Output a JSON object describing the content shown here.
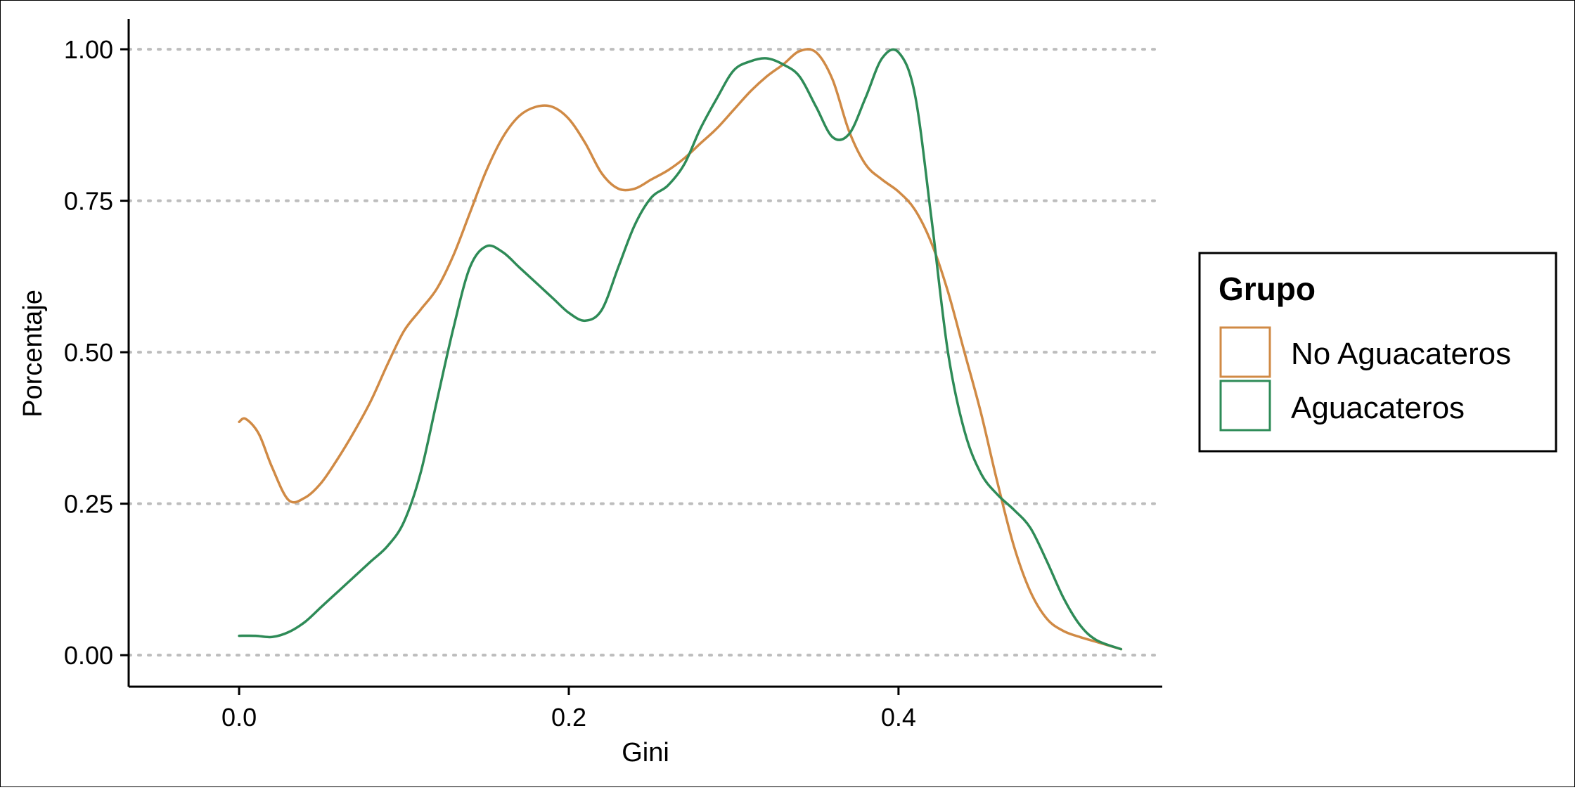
{
  "chart_data": {
    "type": "line",
    "title": "",
    "xlabel": "Gini",
    "ylabel": "Porcentaje",
    "xlim": [
      -0.067,
      0.56
    ],
    "ylim": [
      -0.052,
      1.05
    ],
    "x_ticks": [
      0.0,
      0.2,
      0.4
    ],
    "x_tick_labels": [
      "0.0",
      "0.2",
      "0.4"
    ],
    "y_ticks": [
      0.0,
      0.25,
      0.5,
      0.75,
      1.0
    ],
    "y_tick_labels": [
      "0.00",
      "0.25",
      "0.50",
      "0.75",
      "1.00"
    ],
    "grid": "horizontal dotted at y ticks",
    "legend": {
      "title": "Grupo",
      "position": "right",
      "entries": [
        "No Aguacateros",
        "Aguacateros"
      ]
    },
    "series": [
      {
        "name": "No Aguacateros",
        "color": "#d08a45",
        "points": [
          [
            0.0,
            0.385
          ],
          [
            0.004,
            0.39
          ],
          [
            0.012,
            0.365
          ],
          [
            0.02,
            0.31
          ],
          [
            0.03,
            0.256
          ],
          [
            0.04,
            0.26
          ],
          [
            0.05,
            0.285
          ],
          [
            0.06,
            0.325
          ],
          [
            0.07,
            0.37
          ],
          [
            0.08,
            0.42
          ],
          [
            0.09,
            0.48
          ],
          [
            0.1,
            0.535
          ],
          [
            0.11,
            0.57
          ],
          [
            0.12,
            0.605
          ],
          [
            0.13,
            0.66
          ],
          [
            0.14,
            0.73
          ],
          [
            0.15,
            0.8
          ],
          [
            0.16,
            0.855
          ],
          [
            0.17,
            0.89
          ],
          [
            0.18,
            0.905
          ],
          [
            0.19,
            0.905
          ],
          [
            0.2,
            0.885
          ],
          [
            0.21,
            0.845
          ],
          [
            0.22,
            0.795
          ],
          [
            0.23,
            0.77
          ],
          [
            0.24,
            0.77
          ],
          [
            0.25,
            0.785
          ],
          [
            0.26,
            0.8
          ],
          [
            0.27,
            0.82
          ],
          [
            0.28,
            0.845
          ],
          [
            0.29,
            0.87
          ],
          [
            0.3,
            0.9
          ],
          [
            0.31,
            0.93
          ],
          [
            0.32,
            0.955
          ],
          [
            0.33,
            0.975
          ],
          [
            0.34,
            0.997
          ],
          [
            0.35,
            0.995
          ],
          [
            0.36,
            0.95
          ],
          [
            0.37,
            0.865
          ],
          [
            0.38,
            0.81
          ],
          [
            0.39,
            0.785
          ],
          [
            0.4,
            0.765
          ],
          [
            0.41,
            0.735
          ],
          [
            0.42,
            0.68
          ],
          [
            0.43,
            0.6
          ],
          [
            0.44,
            0.5
          ],
          [
            0.45,
            0.4
          ],
          [
            0.46,
            0.285
          ],
          [
            0.47,
            0.18
          ],
          [
            0.48,
            0.105
          ],
          [
            0.49,
            0.06
          ],
          [
            0.5,
            0.04
          ],
          [
            0.51,
            0.03
          ],
          [
            0.52,
            0.022
          ],
          [
            0.535,
            0.01
          ]
        ]
      },
      {
        "name": "Aguacateros",
        "color": "#2e8b57",
        "points": [
          [
            0.0,
            0.032
          ],
          [
            0.01,
            0.032
          ],
          [
            0.02,
            0.03
          ],
          [
            0.03,
            0.038
          ],
          [
            0.04,
            0.055
          ],
          [
            0.05,
            0.08
          ],
          [
            0.06,
            0.105
          ],
          [
            0.07,
            0.13
          ],
          [
            0.08,
            0.155
          ],
          [
            0.09,
            0.18
          ],
          [
            0.1,
            0.22
          ],
          [
            0.11,
            0.3
          ],
          [
            0.12,
            0.42
          ],
          [
            0.13,
            0.54
          ],
          [
            0.14,
            0.64
          ],
          [
            0.15,
            0.675
          ],
          [
            0.16,
            0.665
          ],
          [
            0.17,
            0.64
          ],
          [
            0.18,
            0.615
          ],
          [
            0.19,
            0.59
          ],
          [
            0.2,
            0.565
          ],
          [
            0.21,
            0.552
          ],
          [
            0.22,
            0.57
          ],
          [
            0.23,
            0.64
          ],
          [
            0.24,
            0.71
          ],
          [
            0.25,
            0.755
          ],
          [
            0.26,
            0.775
          ],
          [
            0.27,
            0.81
          ],
          [
            0.28,
            0.87
          ],
          [
            0.29,
            0.92
          ],
          [
            0.3,
            0.965
          ],
          [
            0.31,
            0.98
          ],
          [
            0.32,
            0.985
          ],
          [
            0.33,
            0.975
          ],
          [
            0.34,
            0.955
          ],
          [
            0.35,
            0.905
          ],
          [
            0.36,
            0.855
          ],
          [
            0.37,
            0.86
          ],
          [
            0.38,
            0.92
          ],
          [
            0.39,
            0.985
          ],
          [
            0.4,
            0.995
          ],
          [
            0.41,
            0.925
          ],
          [
            0.42,
            0.72
          ],
          [
            0.43,
            0.5
          ],
          [
            0.44,
            0.37
          ],
          [
            0.45,
            0.3
          ],
          [
            0.46,
            0.265
          ],
          [
            0.47,
            0.24
          ],
          [
            0.48,
            0.21
          ],
          [
            0.49,
            0.155
          ],
          [
            0.5,
            0.095
          ],
          [
            0.51,
            0.05
          ],
          [
            0.52,
            0.025
          ],
          [
            0.535,
            0.01
          ]
        ]
      }
    ]
  }
}
